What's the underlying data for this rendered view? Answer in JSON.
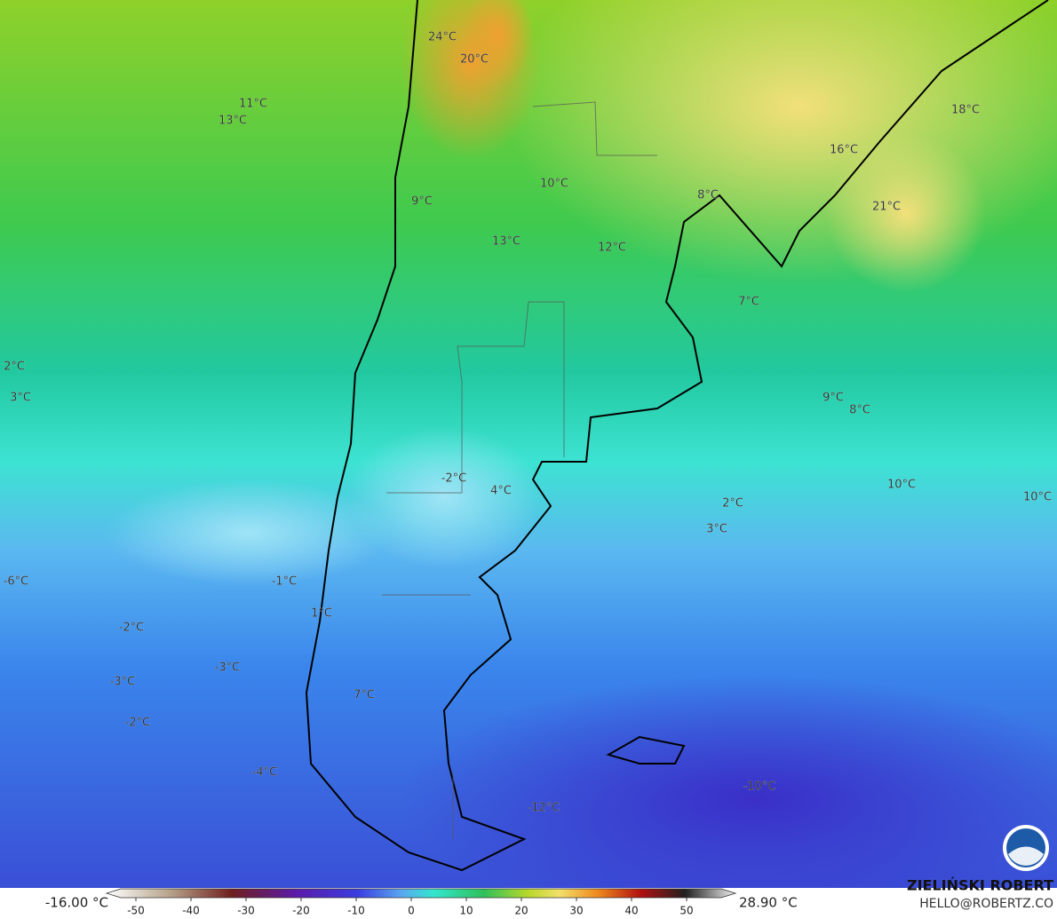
{
  "labels": [
    "24°C",
    "20°C",
    "11°C",
    "13°C",
    "18°C",
    "16°C",
    "10°C",
    "9°C",
    "8°C",
    "21°C",
    "13°C",
    "12°C",
    "7°C",
    "2°C",
    "3°C",
    "9°C",
    "8°C",
    "-2°C",
    "4°C",
    "10°C",
    "10°C",
    "2°C",
    "3°C",
    "-6°C",
    "-1°C",
    "1°C",
    "-2°C",
    "-3°C",
    "-3°C",
    "7°C",
    "-2°C",
    "-4°C",
    "-10°C",
    "-12°C"
  ],
  "colorbar": {
    "min_label": "-16.00 °C",
    "max_label": "28.90 °C",
    "ticks": [
      -50,
      -40,
      -30,
      -20,
      -10,
      0,
      10,
      20,
      30,
      40,
      50
    ]
  },
  "footer": {
    "author": "ZIELIŃSKI ROBERT",
    "email": "HELLO@ROBERTZ.CO"
  }
}
